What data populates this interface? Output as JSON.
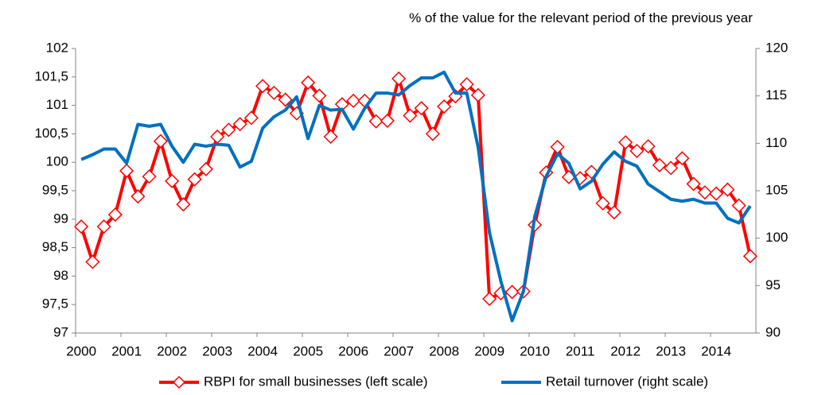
{
  "chart_data": {
    "type": "line",
    "y2_label": "% of the value for the relevant period of the previous year",
    "categories": [
      "2000",
      null,
      null,
      null,
      "2001",
      null,
      null,
      null,
      "2002",
      null,
      null,
      null,
      "2003",
      null,
      null,
      null,
      "2004",
      null,
      null,
      null,
      "2005",
      null,
      null,
      null,
      "2006",
      null,
      null,
      null,
      "2007",
      null,
      null,
      null,
      "2008",
      null,
      null,
      null,
      "2009",
      null,
      null,
      null,
      "2010",
      null,
      null,
      null,
      "2011",
      null,
      null,
      null,
      "2012",
      null,
      null,
      null,
      "2013",
      null,
      null,
      null,
      "2014",
      null,
      null,
      null
    ],
    "series": [
      {
        "name": "RBPI for small businesses (left scale)",
        "color": "#ff0000",
        "marker": "diamond",
        "values": [
          98.87,
          98.25,
          98.87,
          99.08,
          99.85,
          99.4,
          99.75,
          100.37,
          99.67,
          99.26,
          99.7,
          99.88,
          100.45,
          100.57,
          100.67,
          100.78,
          101.34,
          101.22,
          101.1,
          100.86,
          101.4,
          101.17,
          100.45,
          101.02,
          101.08,
          101.08,
          100.72,
          100.73,
          101.47,
          100.82,
          100.95,
          100.5,
          100.98,
          101.16,
          101.37,
          101.18,
          97.6,
          97.7,
          97.72,
          97.73,
          98.9,
          99.82,
          100.27,
          99.74,
          99.72,
          99.83,
          99.28,
          99.12,
          100.35,
          100.2,
          100.28,
          99.95,
          99.9,
          100.07,
          99.62,
          99.47,
          99.45,
          99.52,
          99.24,
          98.35
        ]
      },
      {
        "name": "Retail turnover (right scale)",
        "color": "#0070c0",
        "axis": "y2",
        "values": [
          108.3,
          108.8,
          109.4,
          109.4,
          107.9,
          112,
          111.8,
          112,
          109.7,
          108,
          109.9,
          109.7,
          109.9,
          109.8,
          107.5,
          108.1,
          111.6,
          112.8,
          113.5,
          114.9,
          110.5,
          114,
          113.5,
          113.6,
          111.5,
          113.7,
          115.3,
          115.3,
          115.1,
          116.1,
          116.9,
          116.9,
          117.5,
          115.3,
          115.3,
          109.6,
          100.6,
          95.5,
          91.3,
          94.4,
          102.3,
          106.5,
          108.9,
          107.9,
          105.2,
          106,
          107.8,
          109.1,
          108.1,
          107.6,
          105.7,
          104.9,
          104.1,
          103.9,
          104.1,
          103.7,
          103.7,
          102.1,
          101.6,
          103.4
        ]
      }
    ],
    "ylim": [
      97,
      102
    ],
    "yticks": [
      97,
      {
        "value": 97.5,
        "label": "97,5"
      },
      98,
      {
        "value": 98.5,
        "label": "98,5"
      },
      99,
      {
        "value": 99.5,
        "label": "99,5"
      },
      100,
      {
        "value": 100.5,
        "label": "100,5"
      },
      101,
      {
        "value": 101.5,
        "label": "101,5"
      },
      102
    ],
    "y2lim": [
      90,
      120
    ],
    "y2ticks": [
      90,
      95,
      100,
      105,
      110,
      115,
      120
    ],
    "grid": false,
    "legend": "bottom"
  }
}
